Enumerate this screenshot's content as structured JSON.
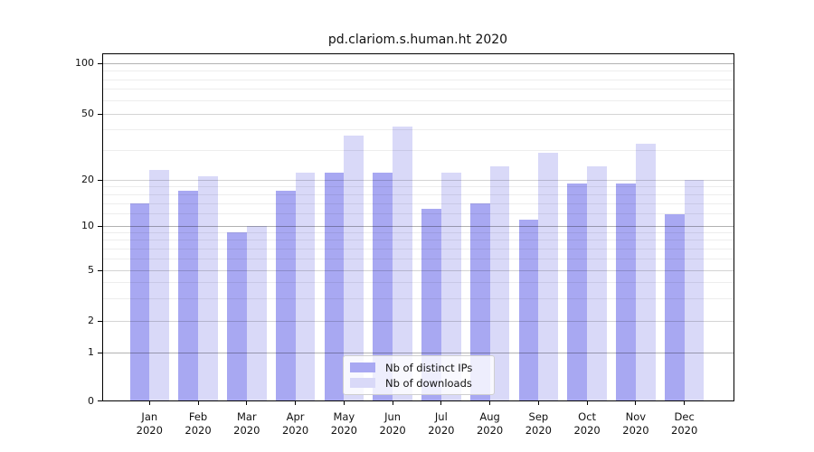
{
  "chart_data": {
    "type": "bar",
    "title": "pd.clariom.s.human.ht 2020",
    "categories": [
      "Jan",
      "Feb",
      "Mar",
      "Apr",
      "May",
      "Jun",
      "Jul",
      "Aug",
      "Sep",
      "Oct",
      "Nov",
      "Dec"
    ],
    "category_year": "2020",
    "series": [
      {
        "name": "Nb of distinct IPs",
        "color": "#a8a8f2",
        "values": [
          14,
          17,
          9,
          17,
          22,
          22,
          13,
          14,
          11,
          19,
          19,
          12
        ]
      },
      {
        "name": "Nb of downloads",
        "color": "#d9d9f8",
        "values": [
          23,
          21,
          10,
          22,
          37,
          42,
          22,
          24,
          29,
          24,
          33,
          20
        ]
      }
    ],
    "y_axis": {
      "scale": "log-like",
      "ticks": [
        0,
        1,
        2,
        5,
        10,
        20,
        50,
        100
      ],
      "decade_ticks": [
        1,
        10,
        100
      ],
      "minor_gridlines": [
        3,
        4,
        6,
        7,
        8,
        9,
        12,
        14,
        16,
        18,
        30,
        40,
        60,
        70,
        80,
        90
      ],
      "range_top": 115
    },
    "legend": {
      "position": "lower center"
    },
    "grid": true
  }
}
